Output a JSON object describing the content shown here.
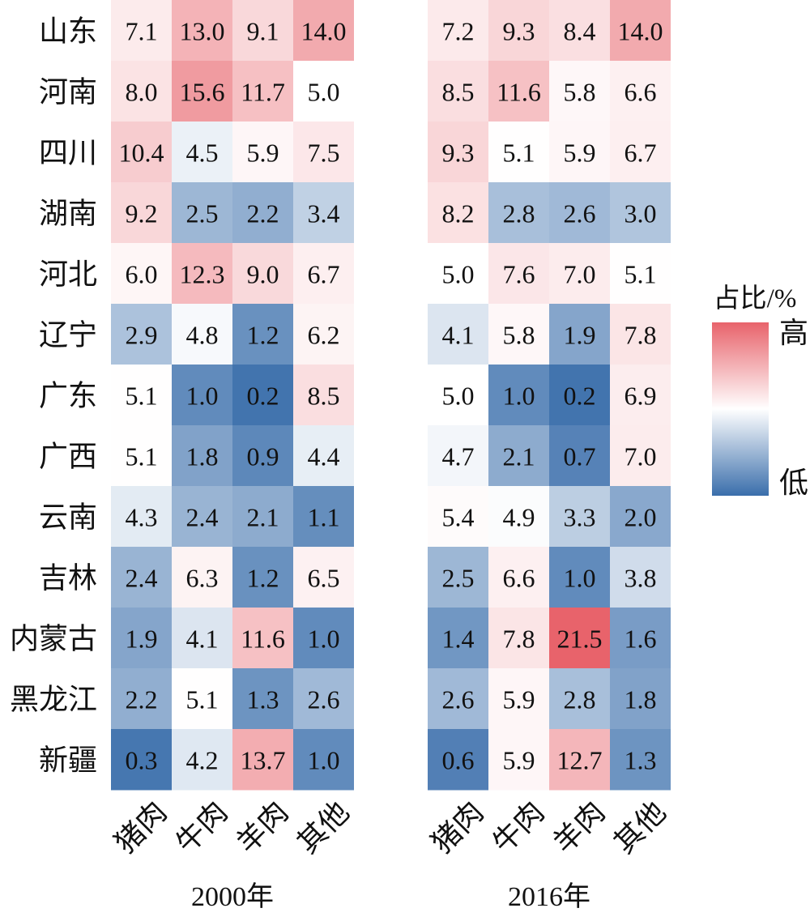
{
  "chart_data": {
    "type": "heatmap",
    "rows": [
      "山东",
      "河南",
      "四川",
      "湖南",
      "河北",
      "辽宁",
      "广东",
      "广西",
      "云南",
      "吉林",
      "内蒙古",
      "黑龙江",
      "新疆"
    ],
    "columns": [
      "猪肉",
      "牛肉",
      "羊肉",
      "其他"
    ],
    "panels": [
      {
        "xlabel": "2000年",
        "values": [
          [
            7.1,
            13.0,
            9.1,
            14.0
          ],
          [
            8.0,
            15.6,
            11.7,
            5.0
          ],
          [
            10.4,
            4.5,
            5.9,
            7.5
          ],
          [
            9.2,
            2.5,
            2.2,
            3.4
          ],
          [
            6.0,
            12.3,
            9.0,
            6.7
          ],
          [
            2.9,
            4.8,
            1.2,
            6.2
          ],
          [
            5.1,
            1.0,
            0.2,
            8.5
          ],
          [
            5.1,
            1.8,
            0.9,
            4.4
          ],
          [
            4.3,
            2.4,
            2.1,
            1.1
          ],
          [
            2.4,
            6.3,
            1.2,
            6.5
          ],
          [
            1.9,
            4.1,
            11.6,
            1.0
          ],
          [
            2.2,
            5.1,
            1.3,
            2.6
          ],
          [
            0.3,
            4.2,
            13.7,
            1.0
          ]
        ]
      },
      {
        "xlabel": "2016年",
        "values": [
          [
            7.2,
            9.3,
            8.4,
            14.0
          ],
          [
            8.5,
            11.6,
            5.8,
            6.6
          ],
          [
            9.3,
            5.1,
            5.9,
            6.7
          ],
          [
            8.2,
            2.8,
            2.6,
            3.0
          ],
          [
            5.0,
            7.6,
            7.0,
            5.1
          ],
          [
            4.1,
            5.8,
            1.9,
            7.8
          ],
          [
            5.0,
            1.0,
            0.2,
            6.9
          ],
          [
            4.7,
            2.1,
            0.7,
            7.0
          ],
          [
            5.4,
            4.9,
            3.3,
            2.0
          ],
          [
            2.5,
            6.6,
            1.0,
            3.8
          ],
          [
            1.4,
            7.8,
            21.5,
            1.6
          ],
          [
            2.6,
            5.9,
            2.8,
            1.8
          ],
          [
            0.6,
            5.9,
            12.7,
            1.3
          ]
        ]
      }
    ],
    "colorbar": {
      "title": "占比/%",
      "high_label": "高",
      "low_label": "低",
      "low_color": "#3a6eab",
      "mid_color": "#ffffff",
      "high_color": "#e8636b"
    }
  }
}
